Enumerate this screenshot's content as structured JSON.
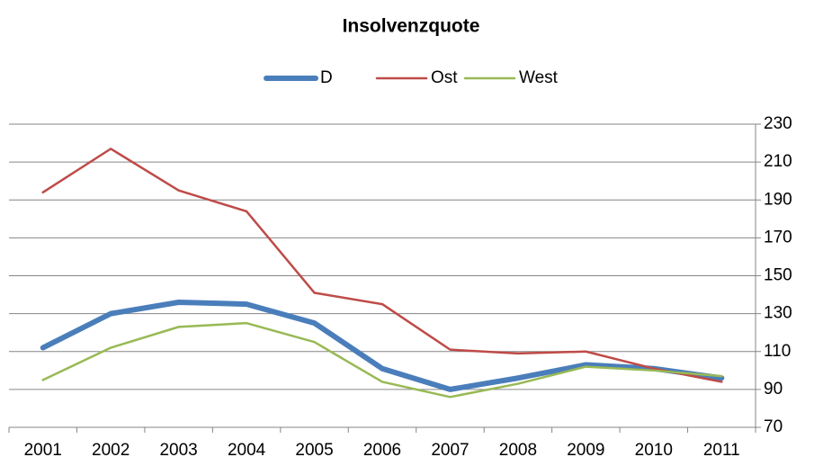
{
  "chart_data": {
    "type": "line",
    "title": "Insolvenzquote",
    "categories": [
      "2001",
      "2002",
      "2003",
      "2004",
      "2005",
      "2006",
      "2007",
      "2008",
      "2009",
      "2010",
      "2011"
    ],
    "series": [
      {
        "name": "D",
        "color": "#4a7ebb",
        "width": 6,
        "values": [
          112,
          130,
          136,
          135,
          125,
          101,
          90,
          96,
          103,
          101,
          96
        ]
      },
      {
        "name": "Ost",
        "color": "#be4b48",
        "width": 2.5,
        "values": [
          194,
          217,
          195,
          184,
          141,
          135,
          111,
          109,
          110,
          101,
          94
        ]
      },
      {
        "name": "West",
        "color": "#98b954",
        "width": 2.5,
        "values": [
          95,
          112,
          123,
          125,
          115,
          94,
          86,
          93,
          102,
          100,
          97
        ]
      }
    ],
    "ylim": [
      70,
      230
    ],
    "yticks": [
      70,
      90,
      110,
      130,
      150,
      170,
      190,
      210,
      230
    ],
    "grid": true,
    "y_axis_side": "right",
    "legend": "top"
  }
}
